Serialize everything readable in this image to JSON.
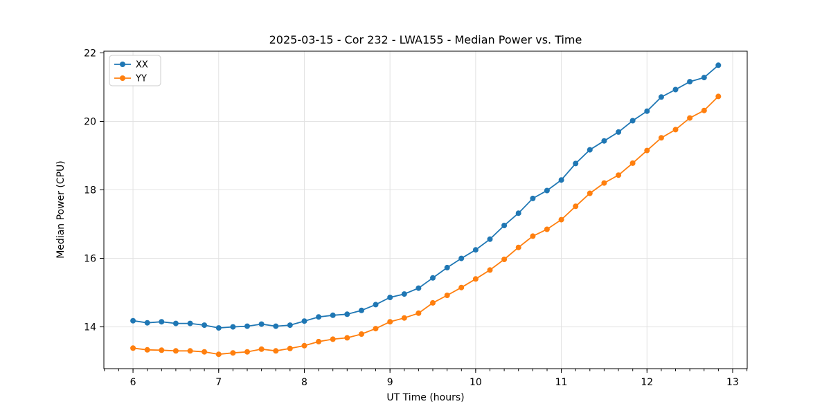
{
  "chart_data": {
    "type": "line",
    "title": "2025-03-15 - Cor 232 - LWA155 - Median Power vs. Time",
    "xlabel": "UT Time (hours)",
    "ylabel": "Median Power (CPU)",
    "xlim": [
      5.66,
      13.17
    ],
    "ylim": [
      12.78,
      22.05
    ],
    "xticks": [
      6,
      7,
      8,
      9,
      10,
      11,
      12,
      13
    ],
    "yticks": [
      14,
      16,
      18,
      20,
      22
    ],
    "x_minor_step": 0.166667,
    "grid": true,
    "legend_position": "upper-left",
    "background": "#ffffff",
    "x": [
      6.0,
      6.167,
      6.333,
      6.5,
      6.667,
      6.833,
      7.0,
      7.167,
      7.333,
      7.5,
      7.667,
      7.833,
      8.0,
      8.167,
      8.333,
      8.5,
      8.667,
      8.833,
      9.0,
      9.167,
      9.333,
      9.5,
      9.667,
      9.833,
      10.0,
      10.167,
      10.333,
      10.5,
      10.667,
      10.833,
      11.0,
      11.167,
      11.333,
      11.5,
      11.667,
      11.833,
      12.0,
      12.167,
      12.333,
      12.5,
      12.667,
      12.833
    ],
    "series": [
      {
        "name": "XX",
        "color": "#1f77b4",
        "values": [
          14.18,
          14.12,
          14.15,
          14.1,
          14.1,
          14.05,
          13.97,
          14.0,
          14.02,
          14.08,
          14.02,
          14.05,
          14.17,
          14.29,
          14.34,
          14.37,
          14.48,
          14.65,
          14.86,
          14.96,
          15.13,
          15.43,
          15.73,
          16.0,
          16.25,
          16.56,
          16.96,
          17.32,
          17.75,
          17.98,
          18.29,
          18.77,
          19.17,
          19.43,
          19.69,
          20.02,
          20.3,
          20.71,
          20.93,
          21.16,
          21.28,
          21.64
        ]
      },
      {
        "name": "YY",
        "color": "#ff7f0e",
        "values": [
          13.38,
          13.33,
          13.32,
          13.3,
          13.3,
          13.27,
          13.2,
          13.24,
          13.27,
          13.35,
          13.3,
          13.37,
          13.45,
          13.57,
          13.64,
          13.68,
          13.79,
          13.95,
          14.15,
          14.26,
          14.4,
          14.7,
          14.92,
          15.15,
          15.4,
          15.66,
          15.97,
          16.32,
          16.65,
          16.85,
          17.13,
          17.52,
          17.9,
          18.2,
          18.43,
          18.78,
          19.15,
          19.52,
          19.76,
          20.1,
          20.32,
          20.73
        ]
      }
    ]
  }
}
